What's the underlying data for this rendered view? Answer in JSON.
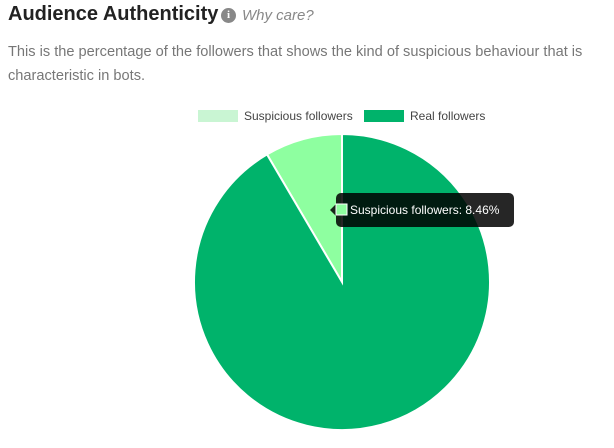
{
  "header": {
    "title": "Audience Authenticity",
    "help_link": "Why care?",
    "description": "This is the percentage of the followers that shows the kind of suspicious behaviour that is characteristic in bots."
  },
  "chart_data": {
    "type": "pie",
    "categories": [
      "Suspicious followers",
      "Real followers"
    ],
    "values": [
      8.46,
      91.54
    ],
    "value_labels": [
      "Suspicious followers: 8.46%",
      null
    ],
    "colors": [
      "#8effa0",
      "#00b36b"
    ],
    "legend_colors": [
      "#c9f5d3",
      "#00b36b"
    ],
    "legend": "top"
  }
}
